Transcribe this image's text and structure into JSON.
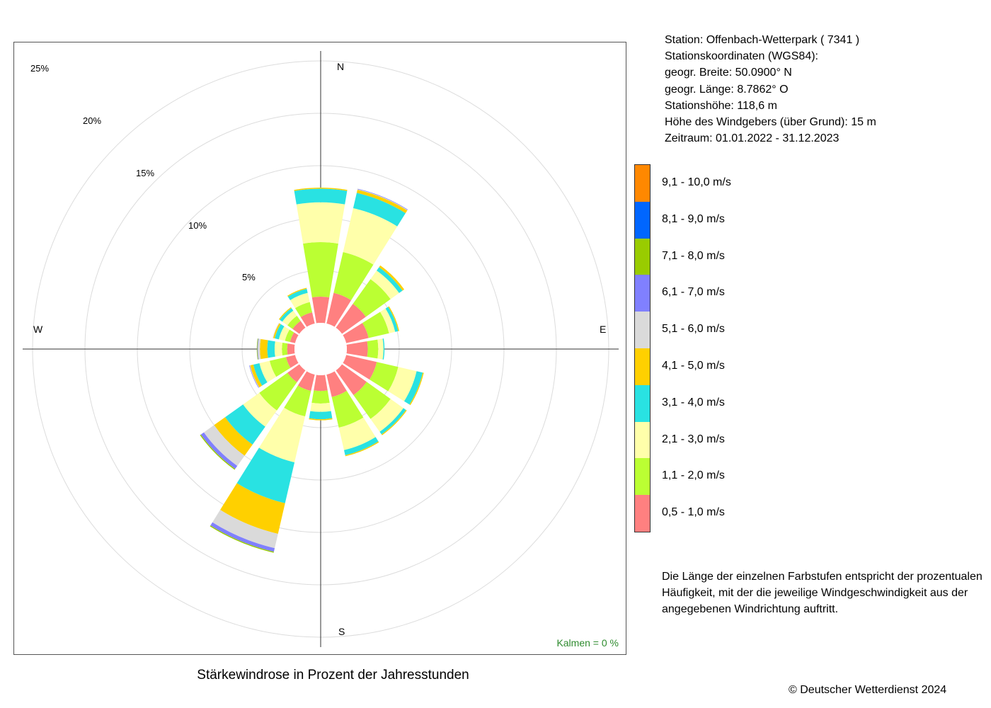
{
  "chart_data": {
    "type": "windrose",
    "title": "Stärkewindrose in Prozent der Jahresstunden",
    "directions": [
      "N",
      "NNE",
      "NE",
      "ENE",
      "E",
      "ESE",
      "SE",
      "SSE",
      "S",
      "SSW",
      "SW",
      "WSW",
      "W",
      "WNW",
      "NW",
      "NNW"
    ],
    "compass_labels": {
      "north": "N",
      "east": "E",
      "south": "S",
      "west": "W"
    },
    "rings": [
      {
        "value": 5,
        "label": "5%"
      },
      {
        "value": 10,
        "label": "10%"
      },
      {
        "value": 15,
        "label": "15%"
      },
      {
        "value": 20,
        "label": "20%"
      },
      {
        "value": 25,
        "label": "25%"
      }
    ],
    "calm": "Kalmen  =  0 %",
    "speed_classes": [
      {
        "label": "0,5 - 1,0 m/s",
        "color": "#ff8080"
      },
      {
        "label": "1,1 - 2,0 m/s",
        "color": "#bbff33"
      },
      {
        "label": "2,1 - 3,0 m/s",
        "color": "#ffffaa"
      },
      {
        "label": "3,1 - 4,0 m/s",
        "color": "#29e2e2"
      },
      {
        "label": "4,1 - 5,0 m/s",
        "color": "#ffd000"
      },
      {
        "label": "5,1 - 6,0 m/s",
        "color": "#dadada"
      },
      {
        "label": "6,1 - 7,0 m/s",
        "color": "#8080ff"
      },
      {
        "label": "7,1 - 8,0 m/s",
        "color": "#99cc00"
      },
      {
        "label": "8,1 - 9,0 m/s",
        "color": "#0066ff"
      },
      {
        "label": "9,1 - 10,0 m/s",
        "color": "#ff8800"
      }
    ],
    "series": [
      {
        "direction": "N",
        "values": [
          2.5,
          5.2,
          3.8,
          1.3,
          0.1,
          0,
          0,
          0,
          0,
          0
        ]
      },
      {
        "direction": "NNE",
        "values": [
          3.0,
          4.0,
          4.3,
          1.5,
          0.3,
          0.05,
          0.05,
          0,
          0,
          0
        ]
      },
      {
        "direction": "NE",
        "values": [
          2.8,
          2.9,
          1.0,
          0.4,
          0.2,
          0,
          0,
          0,
          0,
          0
        ]
      },
      {
        "direction": "ENE",
        "values": [
          2.2,
          2.0,
          0.6,
          0.3,
          0.1,
          0,
          0,
          0,
          0,
          0
        ]
      },
      {
        "direction": "E",
        "values": [
          2.0,
          1.0,
          0.5,
          0.1,
          0,
          0,
          0,
          0,
          0,
          0
        ]
      },
      {
        "direction": "ESE",
        "values": [
          3.0,
          2.1,
          1.8,
          0.6,
          0.1,
          0,
          0,
          0,
          0,
          0
        ]
      },
      {
        "direction": "SE",
        "values": [
          2.9,
          2.8,
          1.5,
          0.3,
          0.1,
          0,
          0,
          0,
          0,
          0
        ]
      },
      {
        "direction": "SSE",
        "values": [
          2.2,
          3.0,
          2.2,
          0.5,
          0.1,
          0,
          0,
          0,
          0,
          0
        ]
      },
      {
        "direction": "S",
        "values": [
          1.5,
          1.2,
          0.8,
          0.7,
          0.1,
          0,
          0,
          0,
          0,
          0
        ]
      },
      {
        "direction": "SSW",
        "values": [
          1.6,
          2.5,
          4.5,
          4.0,
          3.0,
          1.4,
          0.35,
          0.1,
          0,
          0
        ]
      },
      {
        "direction": "SW",
        "values": [
          1.4,
          3.3,
          1.9,
          2.1,
          1.3,
          1.2,
          0.35,
          0.1,
          0,
          0
        ]
      },
      {
        "direction": "WSW",
        "values": [
          0.9,
          1.6,
          1.0,
          0.6,
          0.3,
          0.05,
          0.05,
          0,
          0,
          0
        ]
      },
      {
        "direction": "W",
        "values": [
          0.7,
          0.5,
          0.7,
          0.7,
          0.7,
          0.2,
          0.05,
          0.05,
          0,
          0
        ]
      },
      {
        "direction": "WNW",
        "values": [
          0.5,
          0.5,
          0.6,
          0.4,
          0.15,
          0.05,
          0,
          0,
          0,
          0
        ]
      },
      {
        "direction": "NW",
        "values": [
          0.8,
          0.6,
          0.6,
          0.3,
          0.1,
          0,
          0,
          0,
          0,
          0
        ]
      },
      {
        "direction": "NNW",
        "values": [
          1.1,
          1.0,
          0.9,
          0.4,
          0.1,
          0,
          0,
          0,
          0,
          0
        ]
      }
    ]
  },
  "station": {
    "lines": [
      "Station:  Offenbach-Wetterpark  ( 7341 )",
      "Stationskoordinaten (WGS84):",
      "geogr. Breite: 50.0900° N",
      "geogr. Länge:   8.7862° O",
      "Stationshöhe: 118,6 m",
      "Höhe des Windgebers (über Grund): 15 m",
      "Zeitraum: 01.01.2022 - 31.12.2023"
    ]
  },
  "note": "Die Länge der einzelnen Farbstufen entspricht der prozentualen Häufigkeit, mit der die jeweilige Windgeschwindigkeit aus der angegebenen Windrichtung auftritt.",
  "copyright": "© Deutscher Wetterdienst  2024"
}
